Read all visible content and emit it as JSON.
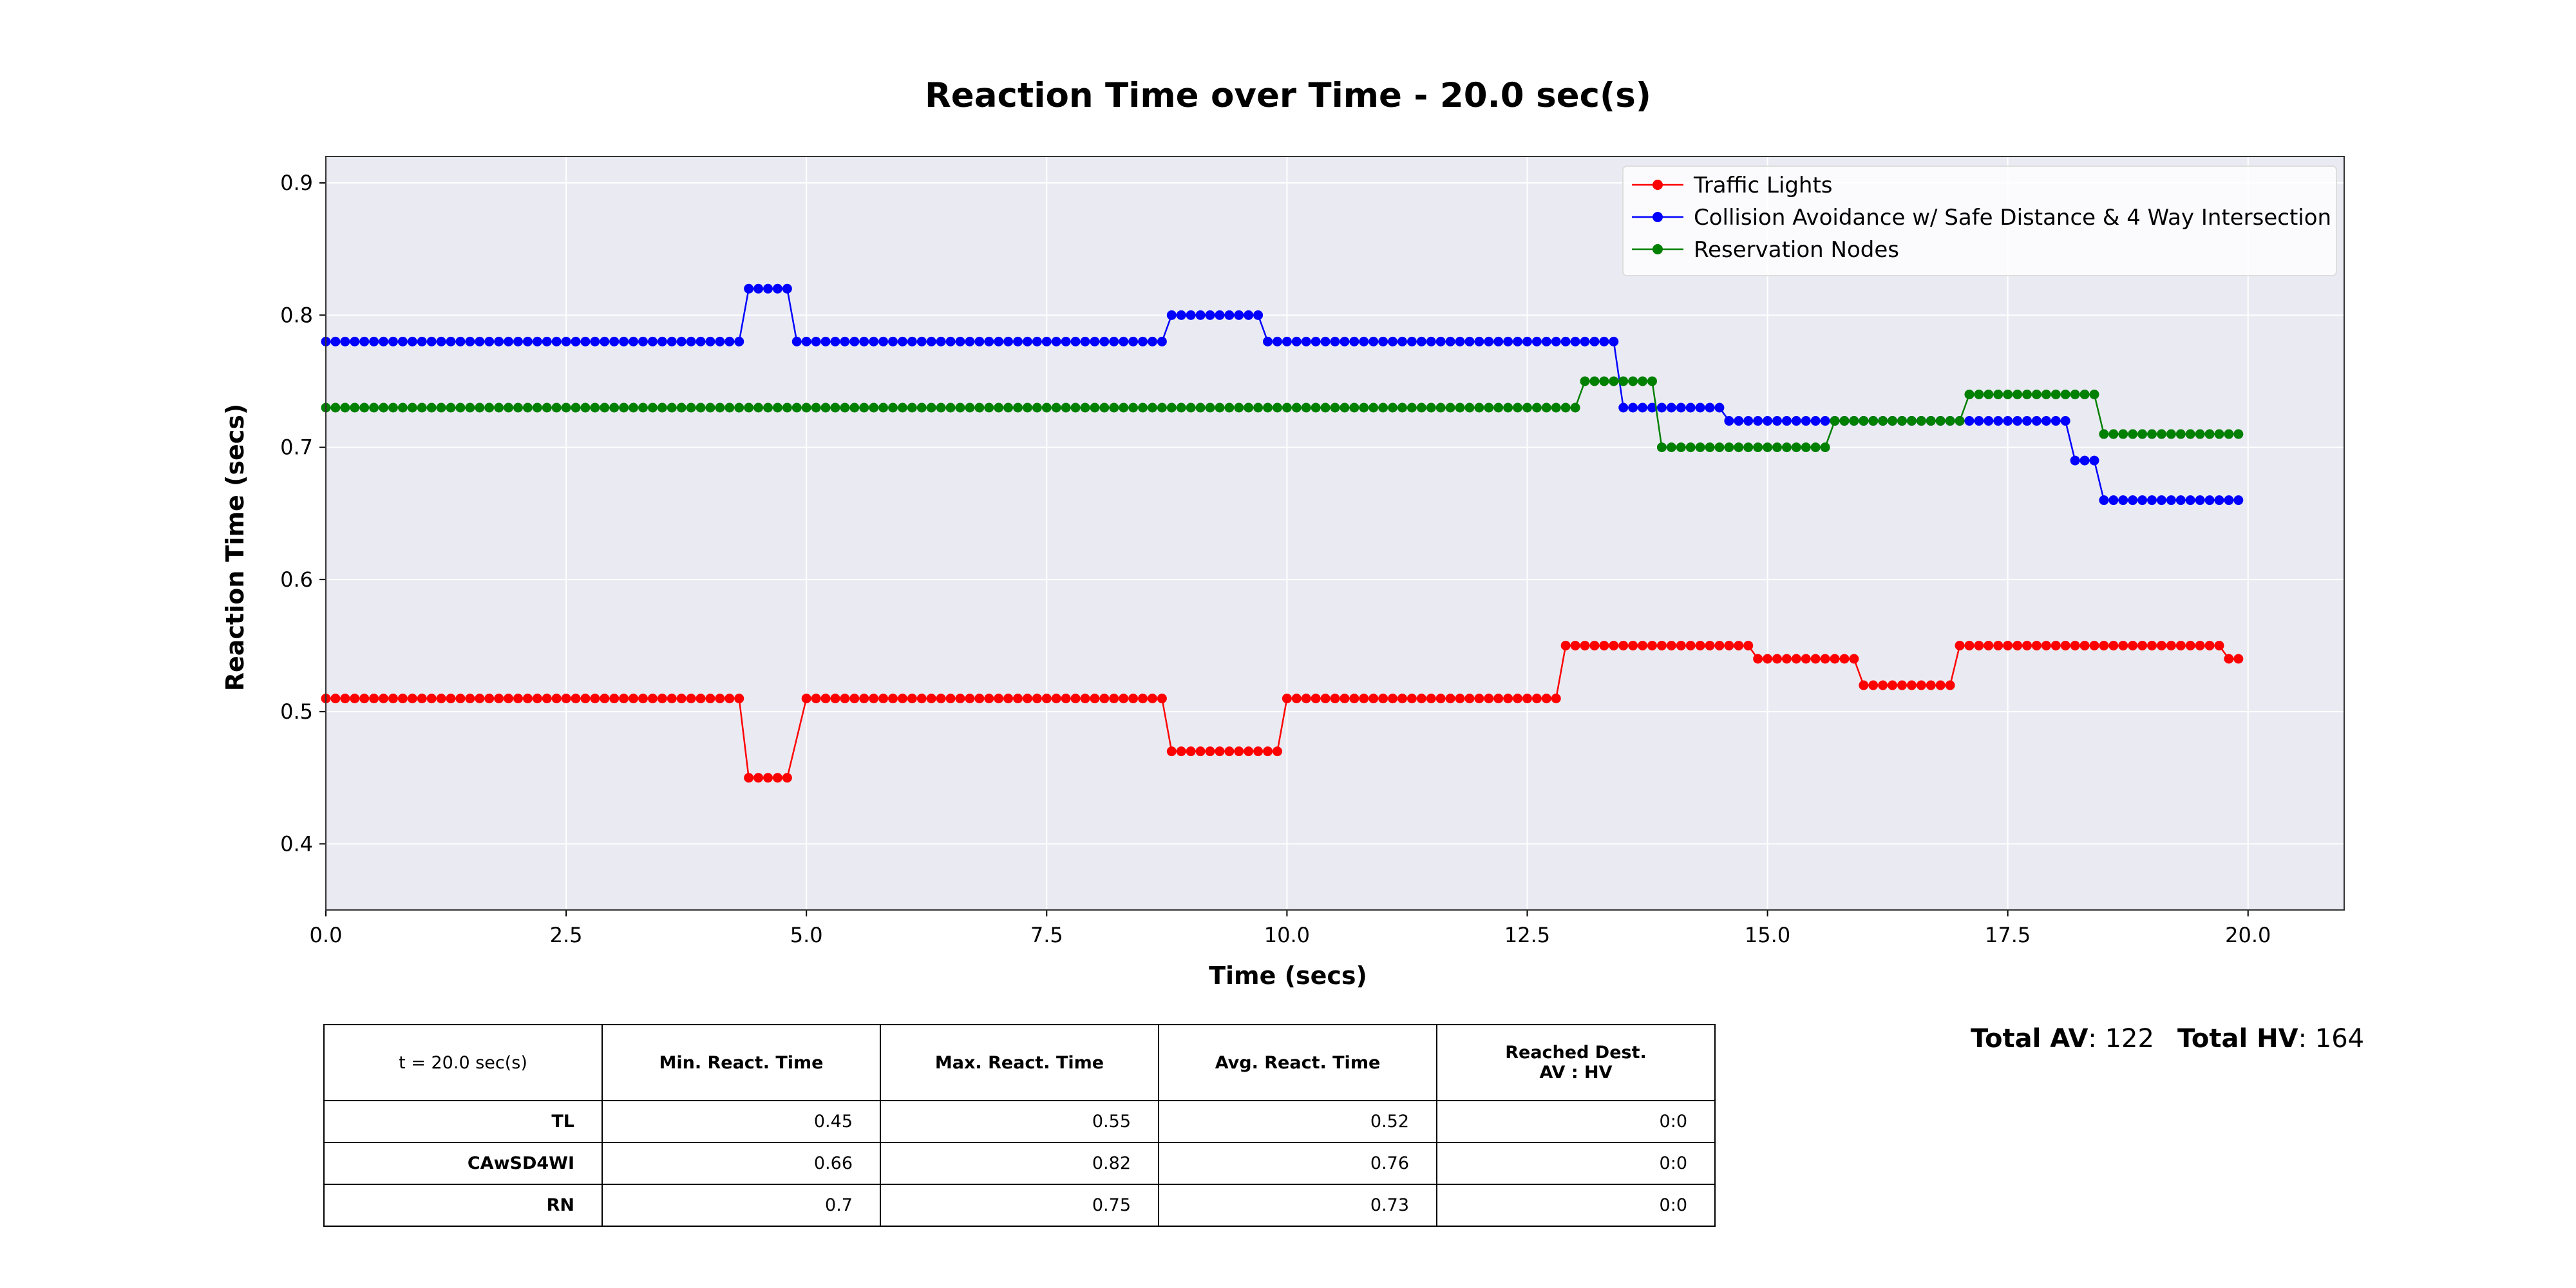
{
  "chart_data": {
    "type": "line",
    "title": "Reaction Time over Time - 20.0 sec(s)",
    "xlabel": "Time (secs)",
    "ylabel": "Reaction Time (secs)",
    "xlim": [
      0,
      21
    ],
    "ylim": [
      0.35,
      0.92
    ],
    "xticks": [
      "0.0",
      "2.5",
      "5.0",
      "7.5",
      "10.0",
      "12.5",
      "15.0",
      "17.5",
      "20.0"
    ],
    "yticks": [
      "0.4",
      "0.5",
      "0.6",
      "0.7",
      "0.8",
      "0.9"
    ],
    "grid": true,
    "legend_position": "top-right",
    "x_step": 0.1,
    "series": [
      {
        "name": "Traffic Lights",
        "color": "#ff0000",
        "segments": [
          {
            "from": 0.0,
            "to": 4.3,
            "y": 0.51
          },
          {
            "from": 4.4,
            "to": 4.8,
            "y": 0.45
          },
          {
            "from": 5.0,
            "to": 8.7,
            "y": 0.51
          },
          {
            "from": 8.8,
            "to": 9.9,
            "y": 0.47
          },
          {
            "from": 10.0,
            "to": 12.8,
            "y": 0.51
          },
          {
            "from": 12.9,
            "to": 14.8,
            "y": 0.55
          },
          {
            "from": 14.9,
            "to": 15.9,
            "y": 0.54
          },
          {
            "from": 16.0,
            "to": 16.9,
            "y": 0.52
          },
          {
            "from": 17.0,
            "to": 19.7,
            "y": 0.55
          },
          {
            "from": 19.8,
            "to": 19.9,
            "y": 0.54
          }
        ]
      },
      {
        "name": "Collision Avoidance w/ Safe Distance & 4 Way Intersection",
        "color": "#0000ff",
        "segments": [
          {
            "from": 0.0,
            "to": 4.3,
            "y": 0.78
          },
          {
            "from": 4.4,
            "to": 4.8,
            "y": 0.82
          },
          {
            "from": 4.9,
            "to": 8.7,
            "y": 0.78
          },
          {
            "from": 8.8,
            "to": 9.7,
            "y": 0.8
          },
          {
            "from": 9.8,
            "to": 13.4,
            "y": 0.78
          },
          {
            "from": 13.5,
            "to": 14.5,
            "y": 0.73
          },
          {
            "from": 14.6,
            "to": 18.1,
            "y": 0.72
          },
          {
            "from": 18.2,
            "to": 18.4,
            "y": 0.69
          },
          {
            "from": 18.5,
            "to": 19.9,
            "y": 0.66
          }
        ]
      },
      {
        "name": "Reservation Nodes",
        "color": "#008000",
        "segments": [
          {
            "from": 0.0,
            "to": 13.0,
            "y": 0.73
          },
          {
            "from": 13.1,
            "to": 13.8,
            "y": 0.75
          },
          {
            "from": 13.9,
            "to": 15.6,
            "y": 0.7
          },
          {
            "from": 15.7,
            "to": 17.0,
            "y": 0.72
          },
          {
            "from": 17.1,
            "to": 18.4,
            "y": 0.74
          },
          {
            "from": 18.5,
            "to": 19.9,
            "y": 0.71
          }
        ]
      }
    ]
  },
  "table": {
    "headers": [
      "t = 20.0 sec(s)",
      "Min. React. Time",
      "Max. React. Time",
      "Avg. React. Time",
      "Reached Dest.",
      "AV : HV"
    ],
    "rows": [
      {
        "label": "TL",
        "min": "0.45",
        "max": "0.55",
        "avg": "0.52",
        "reached": "0:0"
      },
      {
        "label": "CAwSD4WI",
        "min": "0.66",
        "max": "0.82",
        "avg": "0.76",
        "reached": "0:0"
      },
      {
        "label": "RN",
        "min": "0.7",
        "max": "0.75",
        "avg": "0.73",
        "reached": "0:0"
      }
    ]
  },
  "totals": {
    "av_label": "Total AV",
    "av_value": ": 122",
    "hv_label": "Total HV",
    "hv_value": ": 164"
  }
}
